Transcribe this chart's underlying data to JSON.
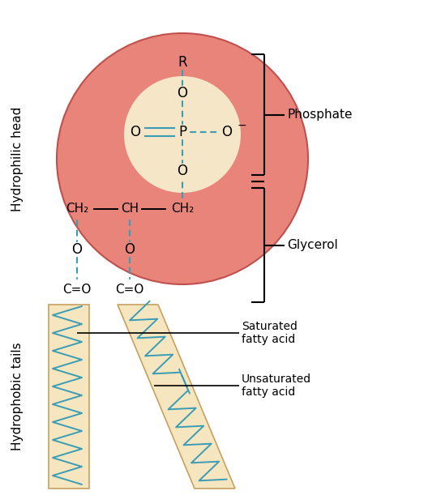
{
  "bg_color": "#ffffff",
  "head_circle_color": "#e8847a",
  "head_circle_edge": "#c0504d",
  "inner_circle_color": "#f5e6c8",
  "bond_color": "#3a9db5",
  "tail_fill_color": "#f5e6c0",
  "tail_border_color": "#c8a060",
  "side_label_phosphate": "Phosphate",
  "side_label_glycerol": "Glycerol",
  "label_saturated": "Saturated\nfatty acid",
  "label_unsaturated": "Unsaturated\nfatty acid",
  "label_hydrophilic": "Hydrophilic head",
  "label_hydrophobic": "Hydrophobic tails",
  "figsize": [
    5.44,
    6.11
  ],
  "dpi": 100
}
